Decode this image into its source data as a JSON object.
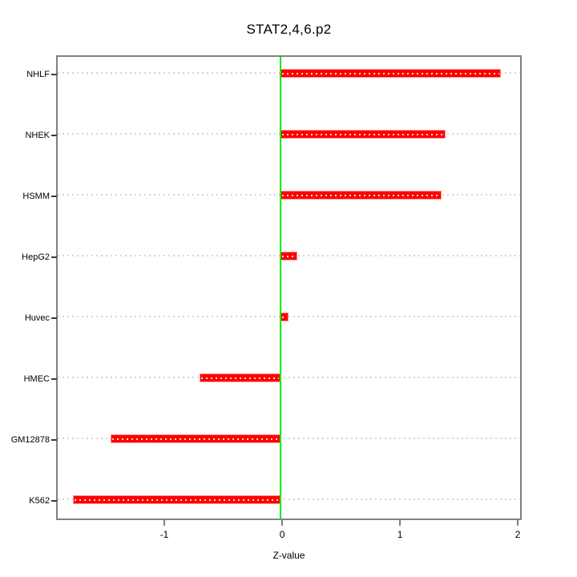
{
  "chart_data": {
    "type": "bar",
    "orientation": "horizontal",
    "title": "STAT2,4,6.p2",
    "xlabel": "Z-value",
    "ylabel": "",
    "categories": [
      "NHLF",
      "NHEK",
      "HSMM",
      "HepG2",
      "Huvec",
      "HMEC",
      "GM12878",
      "K562"
    ],
    "values": [
      1.87,
      1.4,
      1.37,
      0.14,
      0.07,
      -0.69,
      -1.44,
      -1.76
    ],
    "x_ticks": [
      "-1",
      "0",
      "1",
      "2"
    ],
    "x_tick_values": [
      -1,
      0,
      1,
      2
    ],
    "xlim": [
      -1.905,
      2.02
    ],
    "reference_line_x": 0,
    "grid": "dotted-horizontal",
    "legend": "none",
    "colors": {
      "bar_fill": "#fe0000",
      "bar_border": "#ff8f8f",
      "bar_center_dots": "#ffd9d9",
      "zero_line": "#00ee00",
      "grid_line": "#d4d4d4",
      "plot_border": "#828282",
      "tick": "#3a3a3a",
      "text": "#000000",
      "background": "#ffffff"
    }
  }
}
